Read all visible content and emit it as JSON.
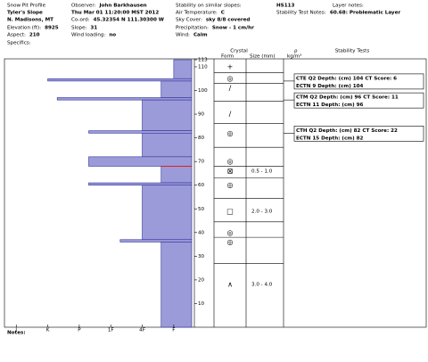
{
  "header": {
    "fields": [
      {
        "label": "Snow Pit Profile"
      },
      {
        "value": "Tyler's Slope"
      },
      {
        "value": "N. Madisons, MT"
      },
      {
        "label": "Elevation (ft):",
        "value": "8925"
      },
      {
        "label": "Aspect:",
        "value": "210"
      },
      {
        "label": "Specifics:"
      },
      {
        "label": "Observer:",
        "value": "John Barkhausen"
      },
      {
        "value": "Thu Mar 01 11:20:00 MST 2012"
      },
      {
        "label": "Co-ord:",
        "value": "45.32354 N 111.30300 W"
      },
      {
        "label": "Slope:",
        "value": "31"
      },
      {
        "label": "Wind loading:",
        "value": "no"
      },
      {
        "label": "Stability on similar slopes:"
      },
      {
        "label": "Air Temperature:",
        "value": "C"
      },
      {
        "label": "Sky Cover:",
        "value": "sky 8/8 covered"
      },
      {
        "label": "Precipitation:",
        "value": "Snow - 1 cm/hr"
      },
      {
        "label": "Wind:",
        "value": "Calm"
      },
      {
        "value": "HS113"
      },
      {
        "label": "Stability Test Notes:"
      },
      {
        "label": "Layer notes:"
      },
      {
        "value": "60.68: Problematic Layer"
      }
    ]
  },
  "columns": {
    "crystal": "Crystal",
    "form": "Form",
    "size": "Size (mm)",
    "rho": "ρ",
    "density_unit": "kg/m³",
    "stability": "Stability Tests"
  },
  "profile": {
    "ylim": [
      0,
      113
    ],
    "yticks": [
      10,
      20,
      30,
      40,
      50,
      60,
      70,
      80,
      90,
      100,
      110,
      113
    ],
    "xlim": [
      6.29,
      0.43
    ],
    "xticks": [
      {
        "value": 6,
        "label": "I"
      },
      {
        "value": 5,
        "label": "K"
      },
      {
        "value": 4,
        "label": "P"
      },
      {
        "value": 3,
        "label": "1F"
      },
      {
        "value": 2,
        "label": "4F"
      },
      {
        "value": 1,
        "label": "F"
      }
    ],
    "fill": "#9b9bd9",
    "stroke": "#30309a",
    "layers": [
      {
        "top": 113,
        "bottom": 105,
        "hardness": 1
      },
      {
        "top": 105,
        "bottom": 104,
        "hardness": 5
      },
      {
        "top": 104,
        "bottom": 97,
        "hardness": 1.4
      },
      {
        "top": 97,
        "bottom": 96,
        "hardness": 4.7
      },
      {
        "top": 96,
        "bottom": 83,
        "hardness": 2
      },
      {
        "top": 83,
        "bottom": 82,
        "hardness": 3.7
      },
      {
        "top": 82,
        "bottom": 72,
        "hardness": 2
      },
      {
        "top": 72,
        "bottom": 68,
        "hardness": 3.7
      },
      {
        "top": 68,
        "bottom": 61,
        "hardness": 1.4
      },
      {
        "top": 61,
        "bottom": 60,
        "hardness": 3.7
      },
      {
        "top": 60,
        "bottom": 37,
        "hardness": 2
      },
      {
        "top": 37,
        "bottom": 36,
        "hardness": 2.7
      },
      {
        "top": 36,
        "bottom": 0,
        "hardness": 1.4
      }
    ],
    "problem_height": 68,
    "problem_color": "#e02020"
  },
  "crystals": [
    {
      "height": 110,
      "form": "+"
    },
    {
      "height": 105,
      "form": "◎"
    },
    {
      "height": 101,
      "form": "/"
    },
    {
      "height": 90,
      "form": "/"
    },
    {
      "height": 82,
      "form": "◎"
    },
    {
      "height": 70,
      "form": "◎"
    },
    {
      "height": 66,
      "form": "⊠",
      "size": "0.5 - 1.0"
    },
    {
      "height": 60,
      "form": "◎"
    },
    {
      "height": 49,
      "form": "□",
      "size": "2.0 - 3.0"
    },
    {
      "height": 40,
      "form": "◎"
    },
    {
      "height": 36,
      "form": "◎"
    },
    {
      "height": 18,
      "form": "∧",
      "size": "3.0 - 4.0"
    }
  ],
  "tests": [
    {
      "depth": 104,
      "lines": [
        "CTE Q2 Depth: (cm) 104 CT Score: 6",
        "ECTN 9 Depth: (cm) 104"
      ]
    },
    {
      "depth": 96,
      "lines": [
        "CTM Q2 Depth: (cm) 96 CT Score: 11",
        "ECTN 11 Depth: (cm) 96"
      ]
    },
    {
      "depth": 82,
      "lines": [
        "CTH Q2 Depth: (cm) 82 CT Score: 22",
        "ECTN 15 Depth: (cm) 82"
      ]
    }
  ],
  "notes": "Notes:"
}
